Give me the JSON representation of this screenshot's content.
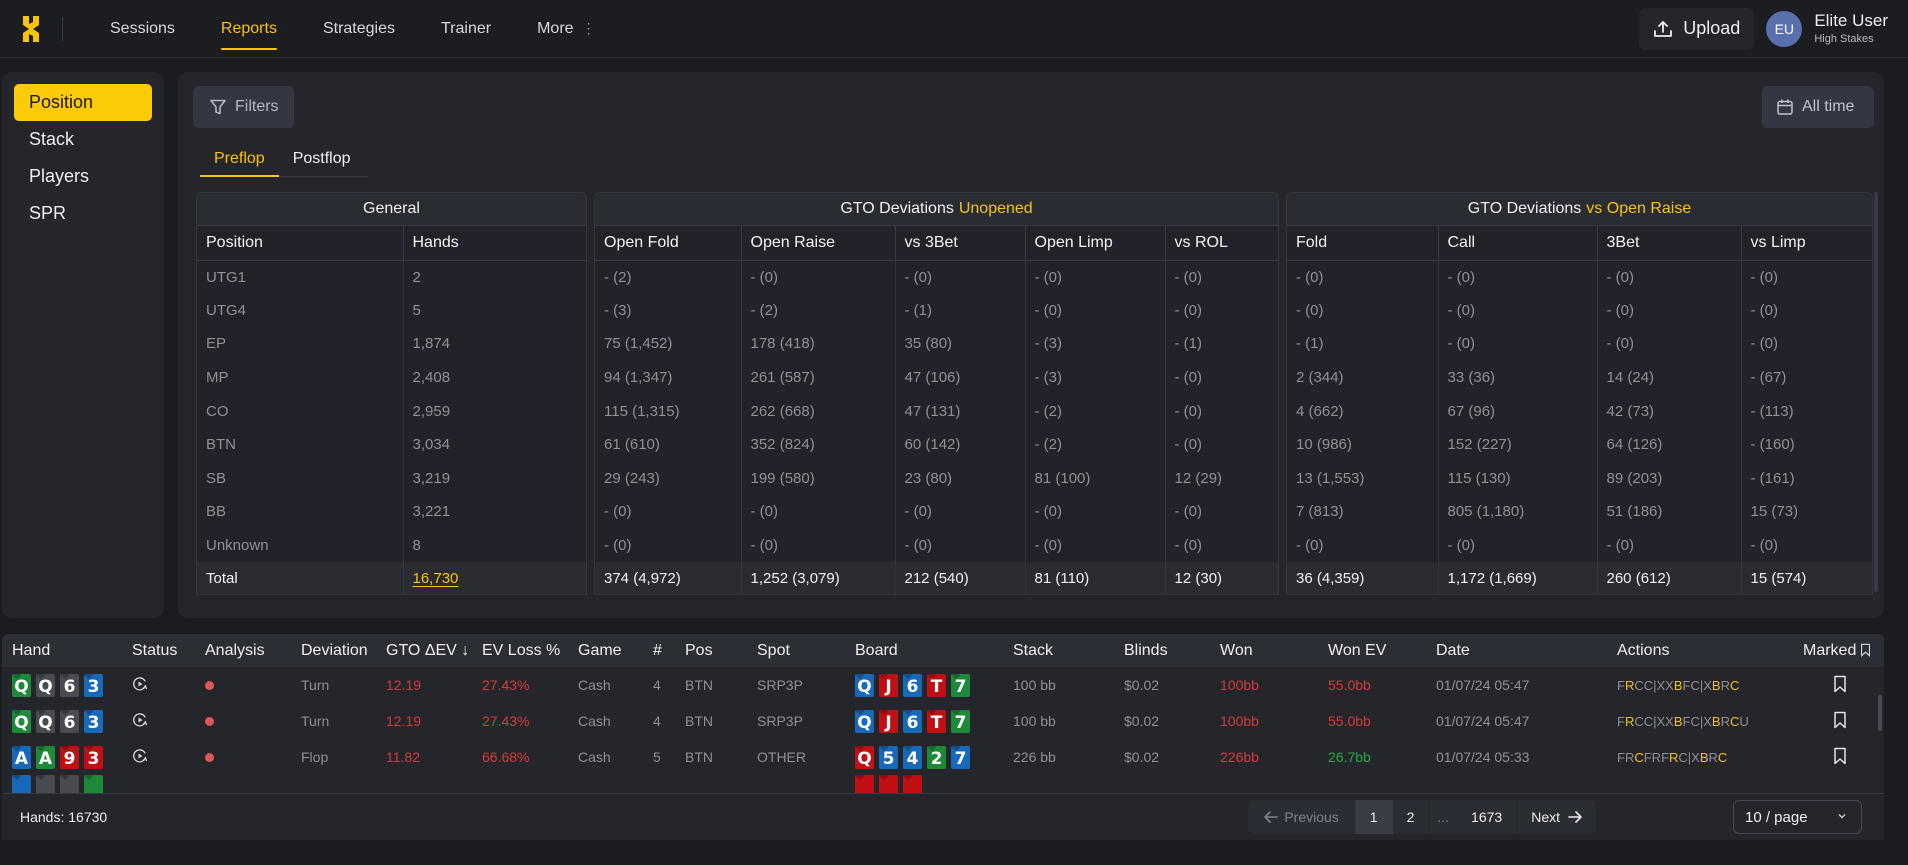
{
  "nav": {
    "items": [
      {
        "label": "Sessions",
        "active": false
      },
      {
        "label": "Reports",
        "active": true
      },
      {
        "label": "Strategies",
        "active": false
      },
      {
        "label": "Trainer",
        "active": false
      },
      {
        "label": "More",
        "active": false
      }
    ],
    "upload_label": "Upload",
    "user": {
      "initials": "EU",
      "name": "Elite User",
      "tier": "High Stakes"
    }
  },
  "sidebar": {
    "items": [
      {
        "label": "Position",
        "active": true
      },
      {
        "label": "Stack",
        "active": false
      },
      {
        "label": "Players",
        "active": false
      },
      {
        "label": "SPR",
        "active": false
      }
    ]
  },
  "toolbar": {
    "filters_label": "Filters",
    "date_range_label": "All time"
  },
  "subtabs": [
    {
      "label": "Preflop",
      "active": true
    },
    {
      "label": "Postflop",
      "active": false
    }
  ],
  "general": {
    "title": "General",
    "columns": [
      "Position",
      "Hands"
    ],
    "rows": [
      [
        "UTG1",
        "2"
      ],
      [
        "UTG4",
        "5"
      ],
      [
        "EP",
        "1,874"
      ],
      [
        "MP",
        "2,408"
      ],
      [
        "CO",
        "2,959"
      ],
      [
        "BTN",
        "3,034"
      ],
      [
        "SB",
        "3,219"
      ],
      [
        "BB",
        "3,221"
      ],
      [
        "Unknown",
        "8"
      ]
    ],
    "total": [
      "Total",
      "16,730"
    ]
  },
  "unopened": {
    "title": "GTO Deviations",
    "title_highlight": "Unopened",
    "columns": [
      "Open Fold",
      "Open Raise",
      "vs 3Bet",
      "Open Limp",
      "vs ROL"
    ],
    "rows": [
      [
        "- (2)",
        "- (0)",
        "- (0)",
        "- (0)",
        "- (0)"
      ],
      [
        "- (3)",
        "- (2)",
        "- (1)",
        "- (0)",
        "- (0)"
      ],
      [
        "75 (1,452)",
        "178 (418)",
        "35 (80)",
        "- (3)",
        "- (1)"
      ],
      [
        "94 (1,347)",
        "261 (587)",
        "47 (106)",
        "- (3)",
        "- (0)"
      ],
      [
        "115 (1,315)",
        "262 (668)",
        "47 (131)",
        "- (2)",
        "- (0)"
      ],
      [
        "61 (610)",
        "352 (824)",
        "60 (142)",
        "- (2)",
        "- (0)"
      ],
      [
        "29 (243)",
        "199 (580)",
        "23 (80)",
        "81 (100)",
        "12 (29)"
      ],
      [
        "- (0)",
        "- (0)",
        "- (0)",
        "- (0)",
        "- (0)"
      ],
      [
        "- (0)",
        "- (0)",
        "- (0)",
        "- (0)",
        "- (0)"
      ]
    ],
    "total": [
      "374 (4,972)",
      "1,252 (3,079)",
      "212 (540)",
      "81 (110)",
      "12 (30)"
    ]
  },
  "vs_open_raise": {
    "title": "GTO Deviations",
    "title_highlight": "vs Open Raise",
    "columns": [
      "Fold",
      "Call",
      "3Bet",
      "vs Limp"
    ],
    "rows": [
      [
        "- (0)",
        "- (0)",
        "- (0)",
        "- (0)"
      ],
      [
        "- (0)",
        "- (0)",
        "- (0)",
        "- (0)"
      ],
      [
        "- (1)",
        "- (0)",
        "- (0)",
        "- (0)"
      ],
      [
        "2 (344)",
        "33 (36)",
        "14 (24)",
        "- (67)"
      ],
      [
        "4 (662)",
        "67 (96)",
        "42 (73)",
        "- (113)"
      ],
      [
        "10 (986)",
        "152 (227)",
        "64 (126)",
        "- (160)"
      ],
      [
        "13 (1,553)",
        "115 (130)",
        "89 (203)",
        "- (161)"
      ],
      [
        "7 (813)",
        "805 (1,180)",
        "51 (186)",
        "15 (73)"
      ],
      [
        "- (0)",
        "- (0)",
        "- (0)",
        "- (0)"
      ]
    ],
    "total": [
      "36 (4,359)",
      "1,172 (1,669)",
      "260 (612)",
      "15 (574)"
    ]
  },
  "hands_table": {
    "columns": [
      "Hand",
      "Status",
      "Analysis",
      "Deviation",
      "GTO ΔEV ↓",
      "EV Loss %",
      "Game",
      "#",
      "Pos",
      "Spot",
      "Board",
      "Stack",
      "Blinds",
      "Won",
      "Won EV",
      "Date",
      "Actions",
      "Marked"
    ],
    "rows": [
      {
        "hand": [
          {
            "r": "Q",
            "c": "g"
          },
          {
            "r": "Q",
            "c": "s"
          },
          {
            "r": "6",
            "c": "s"
          },
          {
            "r": "3",
            "c": "b"
          }
        ],
        "deviation": "Turn",
        "gto_dev": "12.19",
        "ev_loss": "27.43%",
        "game": "Cash",
        "num": "4",
        "pos": "BTN",
        "spot": "SRP3P",
        "board": [
          {
            "r": "Q",
            "c": "b"
          },
          {
            "r": "J",
            "c": "r"
          },
          {
            "r": "6",
            "c": "b"
          },
          {
            "r": "T",
            "c": "r"
          },
          {
            "r": "7",
            "c": "g"
          }
        ],
        "stack": "100 bb",
        "blinds": "$0.02",
        "won": "100bb",
        "won_ev": "55.0bb",
        "won_ev_sign": "neg",
        "date": "01/07/24 05:47",
        "actions": [
          {
            "t": "F",
            "y": false
          },
          {
            "t": "R",
            "y": true
          },
          {
            "t": "CC|XX",
            "y": false
          },
          {
            "t": "B",
            "y": true
          },
          {
            "t": "FC|X",
            "y": false
          },
          {
            "t": "B",
            "y": true
          },
          {
            "t": "R",
            "y": false
          },
          {
            "t": "C",
            "y": true
          }
        ]
      },
      {
        "hand": [
          {
            "r": "Q",
            "c": "g"
          },
          {
            "r": "Q",
            "c": "s"
          },
          {
            "r": "6",
            "c": "s"
          },
          {
            "r": "3",
            "c": "b"
          }
        ],
        "deviation": "Turn",
        "gto_dev": "12.19",
        "ev_loss": "27.43%",
        "game": "Cash",
        "num": "4",
        "pos": "BTN",
        "spot": "SRP3P",
        "board": [
          {
            "r": "Q",
            "c": "b"
          },
          {
            "r": "J",
            "c": "r"
          },
          {
            "r": "6",
            "c": "b"
          },
          {
            "r": "T",
            "c": "r"
          },
          {
            "r": "7",
            "c": "g"
          }
        ],
        "stack": "100 bb",
        "blinds": "$0.02",
        "won": "100bb",
        "won_ev": "55.0bb",
        "won_ev_sign": "neg",
        "date": "01/07/24 05:47",
        "actions": [
          {
            "t": "F",
            "y": false
          },
          {
            "t": "R",
            "y": true
          },
          {
            "t": "CC|XX",
            "y": false
          },
          {
            "t": "B",
            "y": true
          },
          {
            "t": "FC|X",
            "y": false
          },
          {
            "t": "B",
            "y": true
          },
          {
            "t": "R",
            "y": false
          },
          {
            "t": "C",
            "y": true
          },
          {
            "t": "U",
            "y": false
          }
        ]
      },
      {
        "hand": [
          {
            "r": "A",
            "c": "b"
          },
          {
            "r": "A",
            "c": "g"
          },
          {
            "r": "9",
            "c": "r"
          },
          {
            "r": "3",
            "c": "r"
          }
        ],
        "deviation": "Flop",
        "gto_dev": "11.82",
        "ev_loss": "66.68%",
        "game": "Cash",
        "num": "5",
        "pos": "BTN",
        "spot": "OTHER",
        "board": [
          {
            "r": "Q",
            "c": "r"
          },
          {
            "r": "5",
            "c": "b"
          },
          {
            "r": "4",
            "c": "b"
          },
          {
            "r": "2",
            "c": "g"
          },
          {
            "r": "7",
            "c": "b"
          }
        ],
        "stack": "226 bb",
        "blinds": "$0.02",
        "won": "226bb",
        "won_ev": "26.7bb",
        "won_ev_sign": "pos",
        "date": "01/07/24 05:33",
        "actions": [
          {
            "t": "FR",
            "y": false
          },
          {
            "t": "C",
            "y": true
          },
          {
            "t": "FRF",
            "y": false
          },
          {
            "t": "R",
            "y": true
          },
          {
            "t": "C|X",
            "y": false
          },
          {
            "t": "B",
            "y": true
          },
          {
            "t": "R",
            "y": false
          },
          {
            "t": "C",
            "y": true
          }
        ]
      },
      {
        "hand": [
          {
            "r": "",
            "c": "b"
          },
          {
            "r": "",
            "c": "s"
          },
          {
            "r": "",
            "c": "s"
          },
          {
            "r": "",
            "c": "g"
          }
        ],
        "board": [
          {
            "r": "",
            "c": "r"
          },
          {
            "r": "",
            "c": "r"
          },
          {
            "r": "",
            "c": "r"
          }
        ],
        "partial": true
      }
    ],
    "footer": {
      "hands_count": "Hands: 16730",
      "pagination": {
        "previous": "Previous",
        "pages": [
          "1",
          "2",
          "...",
          "1673"
        ],
        "current": "1",
        "next": "Next"
      },
      "per_page": "10 / page"
    }
  },
  "colors": {
    "accent": "#f6c310",
    "negative": "#d13b3b",
    "positive": "#27a745",
    "card_green": "#1d8a3a",
    "card_blue": "#1769b9",
    "card_red": "#c10f14",
    "card_gray": "#4a4b50"
  }
}
